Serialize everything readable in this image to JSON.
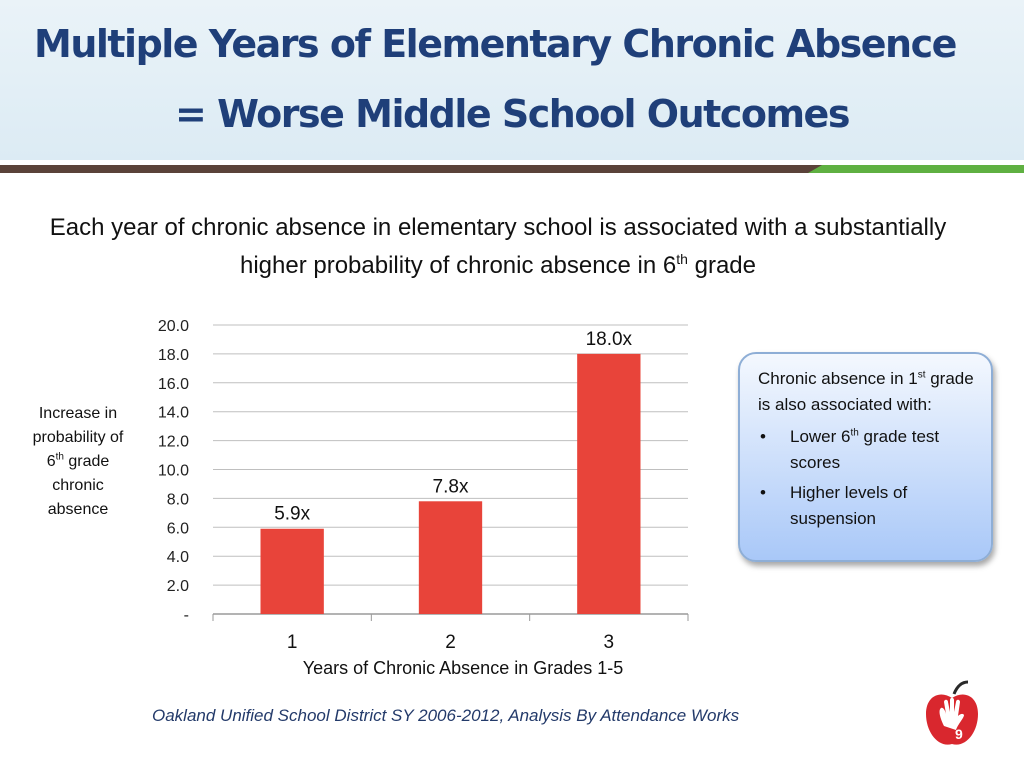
{
  "slide": {
    "title_line1": "Multiple Years of Elementary Chronic Absence",
    "title_line2": "=  Worse Middle School Outcomes",
    "subtitle_part1": "Each year of chronic absence in elementary school is associated with a substantially higher probability of chronic absence in 6",
    "subtitle_sup": "th",
    "subtitle_part2": " grade",
    "page_number": "9"
  },
  "y_axis_label": {
    "line1": "Increase in",
    "line2": "probability of",
    "line3_num": "6",
    "line3_sup": "th",
    "line3_rest": " grade",
    "line4": "chronic",
    "line5": "absence"
  },
  "callout": {
    "intro_a": "Chronic absence in 1",
    "intro_sup": "st",
    "intro_b": " grade is also associated with:",
    "bullet1_a": "Lower 6",
    "bullet1_sup": "th",
    "bullet1_b": " grade test scores",
    "bullet2": "Higher levels of suspension"
  },
  "source": "Oakland Unified School District SY 2006-2012, Analysis By Attendance Works",
  "colors": {
    "title": "#1f3f79",
    "bar": "#e8443a",
    "gridline": "#bfbfbf",
    "callout_border": "#8eaed6"
  },
  "chart_data": {
    "type": "bar",
    "title": "",
    "xlabel": "Years of Chronic Absence in Grades 1-5",
    "ylabel": "Increase in probability of 6th grade chronic absence",
    "categories": [
      "1",
      "2",
      "3"
    ],
    "values": [
      5.9,
      7.8,
      18.0
    ],
    "data_labels": [
      "5.9x",
      "7.8x",
      "18.0x"
    ],
    "ylim": [
      0,
      20
    ],
    "y_ticks": [
      0,
      2,
      4,
      6,
      8,
      10,
      12,
      14,
      16,
      18,
      20
    ],
    "y_tick_labels": [
      "-",
      "2.0",
      "4.0",
      "6.0",
      "8.0",
      "10.0",
      "12.0",
      "14.0",
      "16.0",
      "18.0",
      "20.0"
    ],
    "grid": true
  }
}
